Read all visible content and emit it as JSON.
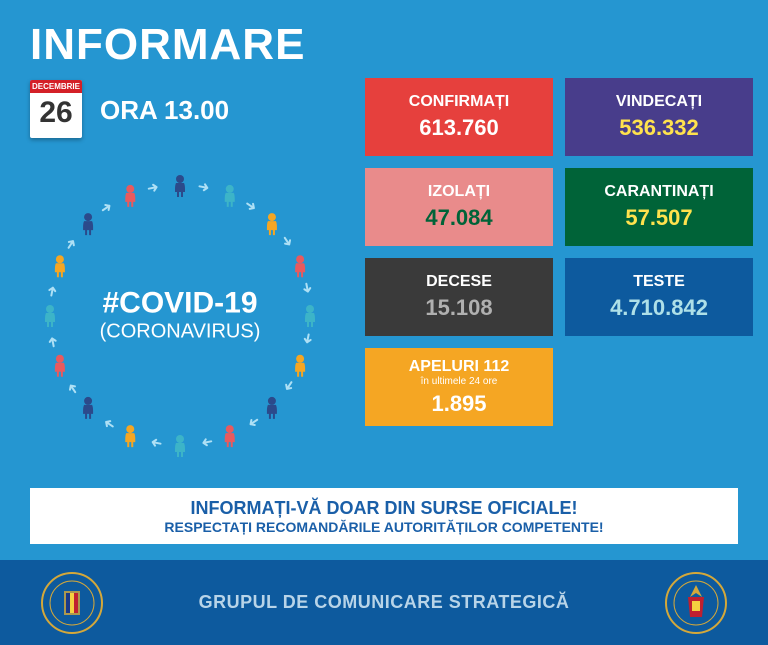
{
  "title": "INFORMARE",
  "date": {
    "month": "DECEMBRIE",
    "day": "26"
  },
  "time": "ORA 13.00",
  "hashtag": "#COVID-19",
  "subtitle": "(CORONAVIRUS)",
  "people_colors": [
    "#2b4a8b",
    "#3cb4c8",
    "#f5a623",
    "#e85a5e",
    "#3cb4c8",
    "#f5a623",
    "#2b4a8b",
    "#e85a5e",
    "#3cb4c8",
    "#f5a623",
    "#2b4a8b",
    "#e85a5e",
    "#3cb4c8",
    "#f5a623",
    "#2b4a8b",
    "#e85a5e"
  ],
  "people_count": 16,
  "circle_radius": 130,
  "arrow_color": "#aee0f5",
  "stats": {
    "confirmati": {
      "label": "CONFIRMAȚI",
      "value": "613.760",
      "bg": "#e6403d",
      "value_color": "#ffffff"
    },
    "vindecati": {
      "label": "VINDECAȚI",
      "value": "536.332",
      "bg": "#483d8b",
      "value_color": "#ffe24d"
    },
    "izolati": {
      "label": "IZOLAȚI",
      "value": "47.084",
      "bg": "#e98b8b",
      "value_color": "#006338"
    },
    "carantinati": {
      "label": "CARANTINAȚI",
      "value": "57.507",
      "bg": "#006338",
      "value_color": "#ffe24d"
    },
    "decese": {
      "label": "DECESE",
      "value": "15.108",
      "bg": "#3a3a3a",
      "value_color": "#b0b0b0"
    },
    "teste": {
      "label": "TESTE",
      "value": "4.710.842",
      "bg": "#0d5a9e",
      "value_color": "#aee0e8"
    },
    "apeluri": {
      "label": "APELURI 112",
      "sublabel": "în ultimele 24 ore",
      "value": "1.895",
      "bg": "#f5a623",
      "value_color": "#ffffff"
    }
  },
  "info": {
    "line1": "INFORMAȚI-VĂ DOAR DIN SURSE OFICIALE!",
    "line2": "RESPECTAȚI RECOMANDĂRILE AUTORITĂȚILOR COMPETENTE!"
  },
  "footer": {
    "text": "GRUPUL DE COMUNICARE STRATEGICĂ",
    "bg": "#0d5a9e"
  },
  "colors": {
    "main_bg": "#2596d1",
    "title": "#ffffff"
  }
}
